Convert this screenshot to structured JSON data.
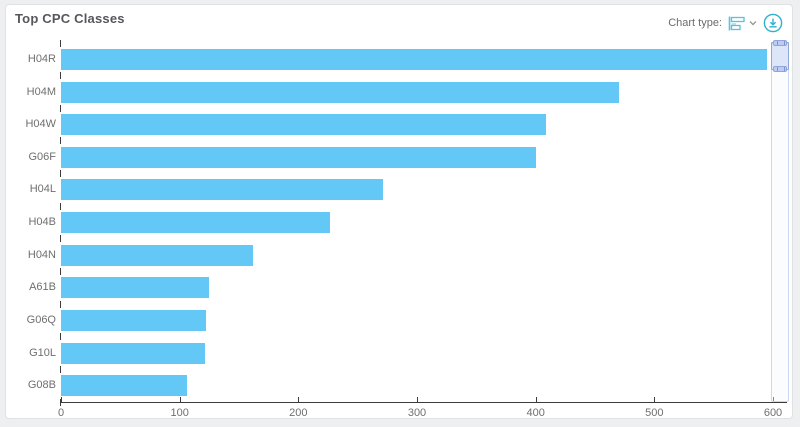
{
  "header": {
    "title": "Top CPC Classes",
    "chart_type_label": "Chart type:",
    "icons": {
      "chart_type": "horizontal-bar-chart-icon",
      "dropdown": "chevron-down-icon",
      "download": "download-icon"
    },
    "accent_color": "#2eb3cd"
  },
  "chart_data": {
    "type": "bar",
    "orientation": "horizontal",
    "title": "Top CPC Classes",
    "categories": [
      "H04R",
      "H04M",
      "H04W",
      "G06F",
      "H04L",
      "H04B",
      "H04N",
      "A61B",
      "G06Q",
      "G10L",
      "G08B"
    ],
    "values": [
      595,
      470,
      409,
      400,
      271,
      227,
      162,
      125,
      122,
      121,
      106
    ],
    "xlabel": "",
    "ylabel": "",
    "xlim": [
      0,
      600
    ],
    "x_ticks": [
      0,
      100,
      200,
      300,
      400,
      500,
      600
    ],
    "bar_color": "#64c8f6",
    "axis_color": "#3c3c3c",
    "label_color": "#6f6f6f",
    "grid": false,
    "legend": "none"
  },
  "scroller": {
    "orientation": "vertical",
    "position": "right",
    "thumb_at": "top"
  }
}
